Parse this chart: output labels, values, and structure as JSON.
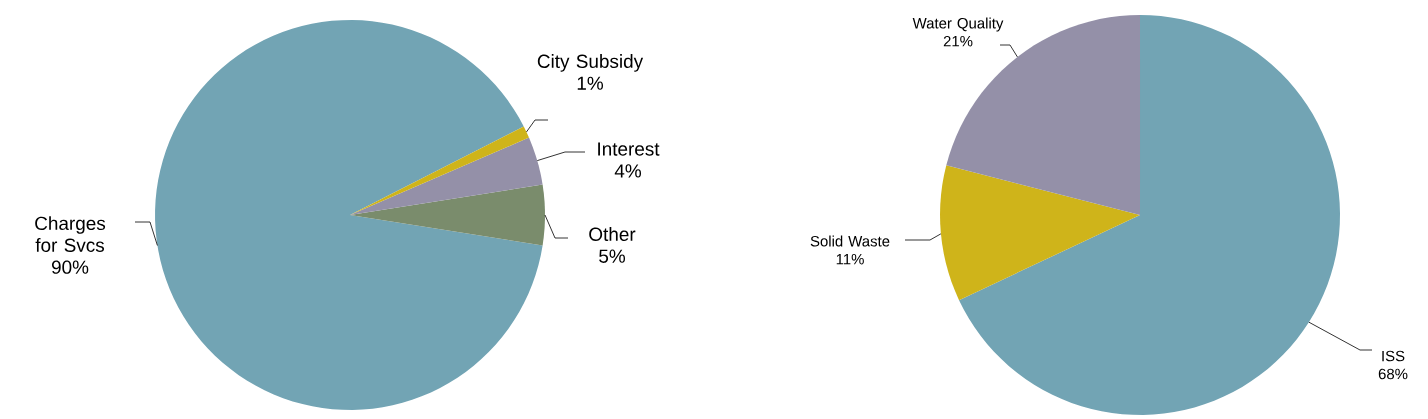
{
  "chart_data": [
    {
      "type": "pie",
      "categories": [
        "Charges for Svcs",
        "Other",
        "Interest",
        "City Subsidy"
      ],
      "values": [
        90,
        5,
        4,
        1
      ],
      "colors": [
        "#72a4b4",
        "#7a8c6c",
        "#9490a8",
        "#cfb41a"
      ],
      "value_labels": [
        "90%",
        "5%",
        "4%",
        "1%"
      ]
    },
    {
      "type": "pie",
      "categories": [
        "ISS",
        "Solid Waste",
        "Water Quality"
      ],
      "values": [
        68,
        11,
        21
      ],
      "colors": [
        "#72a4b4",
        "#cfb41a",
        "#9490a8"
      ],
      "value_labels": [
        "68%",
        "11%",
        "21%"
      ]
    }
  ]
}
